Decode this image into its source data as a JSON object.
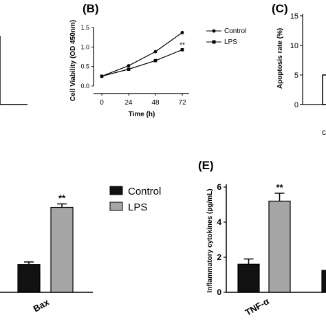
{
  "chart_data": [
    {
      "panel": "(B)",
      "type": "line",
      "xlabel": "Time (h)",
      "ylabel": "Cell Viability (OD 450nm)",
      "x": [
        0,
        24,
        48,
        72
      ],
      "xticks": [
        "0",
        "24",
        "48",
        "72"
      ],
      "yticks": [
        "0.0",
        "0.5",
        "1.0",
        "1.5"
      ],
      "ylim": [
        0,
        1.5
      ],
      "series": [
        {
          "name": "Control",
          "marker": "circle",
          "values": [
            0.25,
            0.52,
            0.88,
            1.37
          ]
        },
        {
          "name": "LPS",
          "marker": "square",
          "values": [
            0.25,
            0.43,
            0.65,
            0.93
          ]
        }
      ],
      "annotations": [
        {
          "x": 72,
          "series": "LPS",
          "text": "**"
        }
      ]
    },
    {
      "panel": "(C)",
      "type": "bar",
      "ylabel": "Apoptosis rate (%)",
      "yticks": [
        "0",
        "5",
        "10",
        "15"
      ],
      "ylim": [
        0,
        15
      ],
      "visible_bar_value": 5
    },
    {
      "type": "bar",
      "categories": [
        "Bax"
      ],
      "series": [
        {
          "name": "Control",
          "color": "#111111",
          "values": [
            1.6
          ],
          "error": [
            0.15
          ]
        },
        {
          "name": "LPS",
          "color": "#a6a6a6",
          "values": [
            4.9
          ],
          "error": [
            0.2
          ]
        }
      ],
      "annotations": [
        {
          "category": "Bax",
          "series": "LPS",
          "text": "**"
        }
      ]
    },
    {
      "panel": "(E)",
      "type": "bar",
      "ylabel": "Inflammatory cytokines (pg/mL)",
      "categories": [
        "TNF-α"
      ],
      "yticks": [
        "0",
        "2",
        "4",
        "6"
      ],
      "ylim": [
        0,
        6
      ],
      "series": [
        {
          "name": "Control",
          "color": "#111111",
          "values": [
            1.6
          ],
          "error": [
            0.3
          ]
        },
        {
          "name": "LPS",
          "color": "#a6a6a6",
          "values": [
            5.2
          ],
          "error": [
            0.45
          ]
        }
      ],
      "annotations": [
        {
          "category": "TNF-α",
          "series": "LPS",
          "text": "**"
        }
      ],
      "partial_next_bar_value": 1.25
    }
  ],
  "legend_large": {
    "control": "Control",
    "lps": "LPS"
  },
  "legend_small": {
    "control": "Control",
    "lps": "LPS"
  },
  "colors": {
    "control": "#111111",
    "lps": "#a6a6a6",
    "line": "#000000"
  }
}
